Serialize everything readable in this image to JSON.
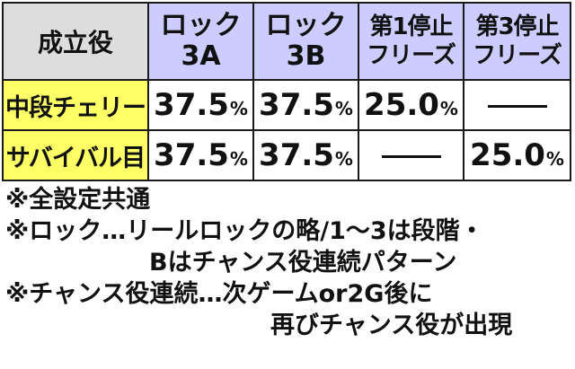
{
  "table": {
    "corner": "成立役",
    "columns": [
      {
        "line1": "ロック",
        "line2": "3A"
      },
      {
        "line1": "ロック",
        "line2": "3B"
      },
      {
        "line1": "第1停止",
        "line2": "フリーズ"
      },
      {
        "line1": "第3停止",
        "line2": "フリーズ"
      }
    ],
    "rows": [
      {
        "label": "中段チェリー",
        "cells": [
          {
            "value": "37.5",
            "unit": "%"
          },
          {
            "value": "37.5",
            "unit": "%"
          },
          {
            "value": "25.0",
            "unit": "%"
          },
          {
            "dash": true
          }
        ]
      },
      {
        "label": "サバイバル目",
        "cells": [
          {
            "value": "37.5",
            "unit": "%"
          },
          {
            "value": "37.5",
            "unit": "%"
          },
          {
            "dash": true
          },
          {
            "value": "25.0",
            "unit": "%"
          }
        ]
      }
    ]
  },
  "notes": {
    "n1": "※全設定共通",
    "n2": "※ロック…リールロックの略/1～3は段階・",
    "n2b": "Bはチャンス役連続パターン",
    "n3": "※チャンス役連続…次ゲームor2G後に",
    "n3b": "再びチャンス役が出現"
  },
  "colors": {
    "header_bg": "#ccccff",
    "rowhead_bg": "#ffff66",
    "corner_bg": "#dddddd"
  }
}
